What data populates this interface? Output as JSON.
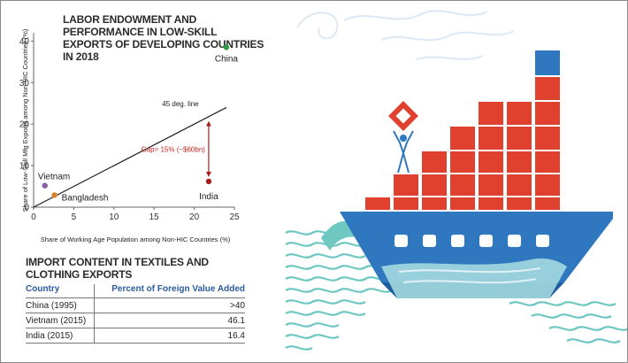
{
  "chart_data": {
    "type": "scatter",
    "title": "LABOR ENDOWMENT AND PERFORMANCE IN LOW-SKILL EXPORTS OF DEVELOPING COUNTRIES IN 2018",
    "xlabel": "Share of Working Age Population among Non-HIC Countries (%)",
    "ylabel": "Share of Low-Skill Mfg Exports among Non-HIC Countries (%)",
    "xlim": [
      0,
      25
    ],
    "ylim": [
      0,
      42
    ],
    "xticks": [
      "0",
      "5",
      "10",
      "15",
      "20",
      "25"
    ],
    "yticks": [
      "0",
      "10",
      "20",
      "30",
      "40"
    ],
    "grid": false,
    "points": [
      {
        "label": "China",
        "x": 24,
        "y": 38.5,
        "color": "#2e9e3e"
      },
      {
        "label": "Vietnam",
        "x": 1.4,
        "y": 5.2,
        "color": "#8a5fa8"
      },
      {
        "label": "Bangladesh",
        "x": 2.6,
        "y": 2.9,
        "color": "#d9822b"
      },
      {
        "label": "India",
        "x": 21.8,
        "y": 6.2,
        "color": "#a51d1d"
      }
    ],
    "line": {
      "label": "45 deg. line",
      "x": [
        0,
        24
      ],
      "y": [
        0,
        24
      ]
    },
    "gap_annotation": "Gap= 15% (~$60bn)"
  },
  "table": {
    "title": "IMPORT CONTENT IN TEXTILES AND CLOTHING EXPORTS",
    "headers": [
      "Country",
      "Percent of Foreign Value Added"
    ],
    "rows": [
      {
        "country": "China (1995)",
        "value": ">40"
      },
      {
        "country": "Vietnam (2015)",
        "value": "46.1"
      },
      {
        "country": "India (2015)",
        "value": "16.4"
      }
    ]
  },
  "colors": {
    "ship_blue": "#2f78c0",
    "container_red": "#e0402e",
    "wave_teal": "#6fc7c2"
  }
}
